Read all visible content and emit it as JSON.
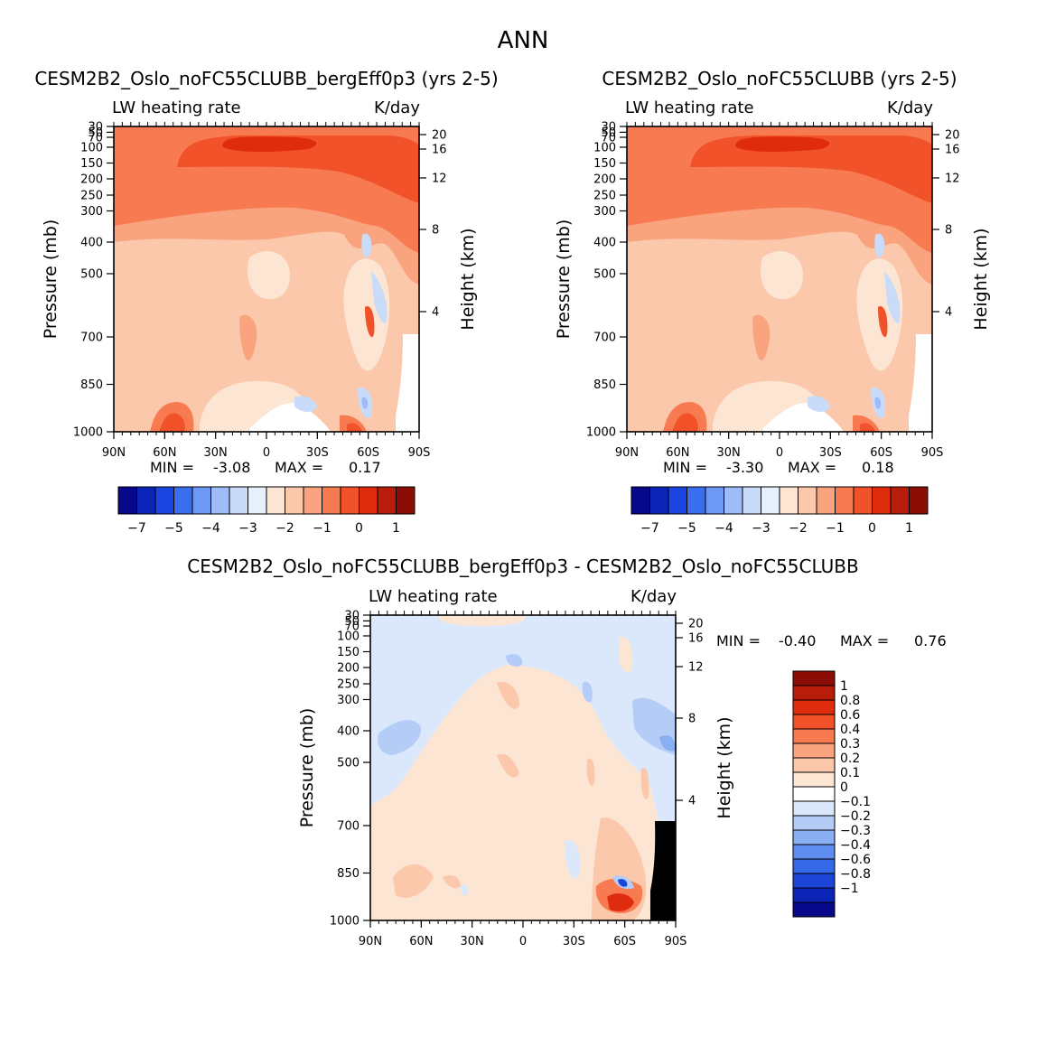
{
  "main_title": "ANN",
  "chart_data": [
    {
      "type": "heatmap",
      "title": "CESM2B2_Oslo_noFC55CLUBB_bergEff0p3 (yrs 2-5)",
      "left_string": "LW heating rate",
      "right_string": "K/day",
      "ylabel": "Pressure (mb)",
      "ylabel_right": "Height (km)",
      "x_ticks": [
        "90N",
        "60N",
        "30N",
        "0",
        "30S",
        "60S",
        "90S"
      ],
      "y_ticks": [
        "30",
        "50",
        "70",
        "100",
        "150",
        "200",
        "250",
        "300",
        "400",
        "500",
        "700",
        "850",
        "1000"
      ],
      "y_ticks_right": [
        "20",
        "16",
        "12",
        "8",
        "4"
      ],
      "min_label": "MIN =",
      "min_value": "-3.08",
      "max_label": "MAX =",
      "max_value": "0.17",
      "colorbar_labels": [
        "-7",
        "-5",
        "-4",
        "-3",
        "-2",
        "-1",
        "0",
        "1"
      ]
    },
    {
      "type": "heatmap",
      "title": "CESM2B2_Oslo_noFC55CLUBB (yrs 2-5)",
      "left_string": "LW heating rate",
      "right_string": "K/day",
      "ylabel": "Pressure (mb)",
      "ylabel_right": "Height (km)",
      "x_ticks": [
        "90N",
        "60N",
        "30N",
        "0",
        "30S",
        "60S",
        "90S"
      ],
      "y_ticks": [
        "30",
        "50",
        "70",
        "100",
        "150",
        "200",
        "250",
        "300",
        "400",
        "500",
        "700",
        "850",
        "1000"
      ],
      "y_ticks_right": [
        "20",
        "16",
        "12",
        "8",
        "4"
      ],
      "min_label": "MIN =",
      "min_value": "-3.30",
      "max_label": "MAX =",
      "max_value": "0.18",
      "colorbar_labels": [
        "-7",
        "-5",
        "-4",
        "-3",
        "-2",
        "-1",
        "0",
        "1"
      ]
    },
    {
      "type": "heatmap",
      "title": "CESM2B2_Oslo_noFC55CLUBB_bergEff0p3 - CESM2B2_Oslo_noFC55CLUBB",
      "left_string": "LW heating rate",
      "right_string": "K/day",
      "ylabel": "Pressure (mb)",
      "ylabel_right": "Height (km)",
      "x_ticks": [
        "90N",
        "60N",
        "30N",
        "0",
        "30S",
        "60S",
        "90S"
      ],
      "y_ticks": [
        "30",
        "50",
        "70",
        "100",
        "150",
        "200",
        "250",
        "300",
        "400",
        "500",
        "700",
        "850",
        "1000"
      ],
      "y_ticks_right": [
        "20",
        "16",
        "12",
        "8",
        "4"
      ],
      "min_label": "MIN =",
      "min_value": "-0.40",
      "max_label": "MAX =",
      "max_value": "0.76",
      "colorbar_labels": [
        "1",
        "0.8",
        "0.6",
        "0.4",
        "0.3",
        "0.2",
        "0.1",
        "0",
        "-0.1",
        "-0.2",
        "-0.3",
        "-0.4",
        "-0.6",
        "-0.8",
        "-1"
      ]
    }
  ],
  "colorbar_colors": [
    "#08088a",
    "#0b24b5",
    "#1a45e0",
    "#3a6ef0",
    "#6e98f5",
    "#9ebdf8",
    "#c8dcfa",
    "#e6f0fc",
    "#fde5d3",
    "#fbc8ab",
    "#f9a47f",
    "#f77a51",
    "#f1522a",
    "#e02c0e",
    "#b81c0a",
    "#8a0e05"
  ],
  "diff_colorbar_colors": [
    "#8a0e05",
    "#b81c0a",
    "#e02c0e",
    "#f1522a",
    "#f77a51",
    "#f9a47f",
    "#fbc8ab",
    "#fde5d3",
    "#ffffff",
    "#dbe8fb",
    "#b3cdf7",
    "#8ab0f3",
    "#5f8df0",
    "#3568e6",
    "#1c45d8",
    "#0b24b5",
    "#08088a"
  ],
  "field_colors": {
    "c05": "#fde5d3",
    "c1": "#fbc8ab",
    "c2": "#f9a47f",
    "c3": "#f77a51",
    "c4": "#f1522a",
    "c5": "#e02c0e",
    "b1": "#c8dcfa",
    "b2": "#9ebdf8",
    "white": "#ffffff"
  },
  "diff_field_colors": {
    "pos1": "#fde5d3",
    "pos2": "#fbc8ab",
    "pos3": "#f77a51",
    "pos4": "#e02c0e",
    "neg1": "#dbe8fb",
    "neg2": "#b3cdf7",
    "neg3": "#8ab0f3",
    "neg4": "#1c45d8"
  }
}
